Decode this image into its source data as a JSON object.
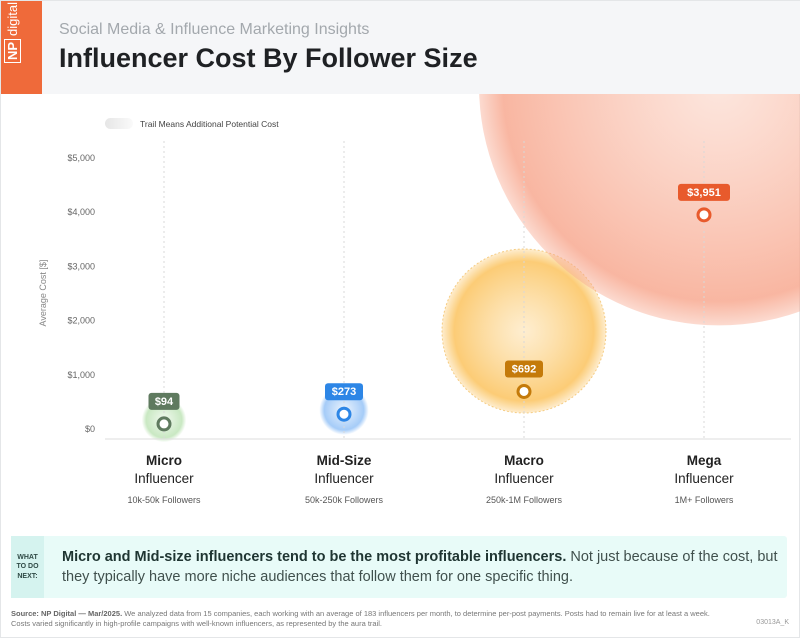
{
  "header": {
    "logo_np": "NP",
    "logo_text": "digital",
    "subtitle": "Social Media & Influence Marketing Insights",
    "title": "Influencer Cost By Follower Size"
  },
  "chart_data": {
    "type": "scatter",
    "title": "Influencer Cost By Follower Size",
    "legend": "Trail Means Additional Potential Cost",
    "ylabel": "Average Cost [$]",
    "ylim": [
      0,
      5000
    ],
    "yticks": [
      0,
      1000,
      2000,
      3000,
      4000,
      5000
    ],
    "ytick_labels": [
      "$0",
      "$1,000",
      "$2,000",
      "$3,000",
      "$4,000",
      "$5,000"
    ],
    "categories": [
      {
        "name1": "Micro",
        "name2": "Influencer",
        "followers": "10k-50k Followers",
        "value": 94,
        "label": "$94",
        "color": "#5f7a5f",
        "aura": "#a5d99a",
        "aura_extent": 400
      },
      {
        "name1": "Mid-Size",
        "name2": "Influencer",
        "followers": "50k-250k Followers",
        "value": 273,
        "label": "$273",
        "color": "#2d86e6",
        "aura": "#7fb6f5",
        "aura_extent": 520
      },
      {
        "name1": "Macro",
        "name2": "Influencer",
        "followers": "250k-1M Followers",
        "value": 692,
        "label": "$692",
        "color": "#c47a0a",
        "aura": "#fbc35e",
        "aura_extent": 1500
      },
      {
        "name1": "Mega",
        "name2": "Influencer",
        "followers": "1M+ Followers",
        "value": 3951,
        "label": "$3,951",
        "color": "#e85a2c",
        "aura": "#f7a48a",
        "aura_extent": 4300
      }
    ]
  },
  "callout": {
    "tag": "WHAT TO DO NEXT:",
    "bold": "Micro and Mid-size influencers tend to be the most profitable influencers.",
    "rest": " Not just because of the cost, but they typically have more niche audiences that follow them for one specific thing."
  },
  "footer": {
    "source": "Source: NP Digital — Mar/2025.",
    "text": " We analyzed data from 15 companies, each working with an average of 183 influencers per month, to determine per-post payments. Posts had to remain live for at least a week. Costs varied significantly in high-profile campaigns with well-known influencers, as represented by the aura trail.",
    "code": "03013A_K"
  }
}
